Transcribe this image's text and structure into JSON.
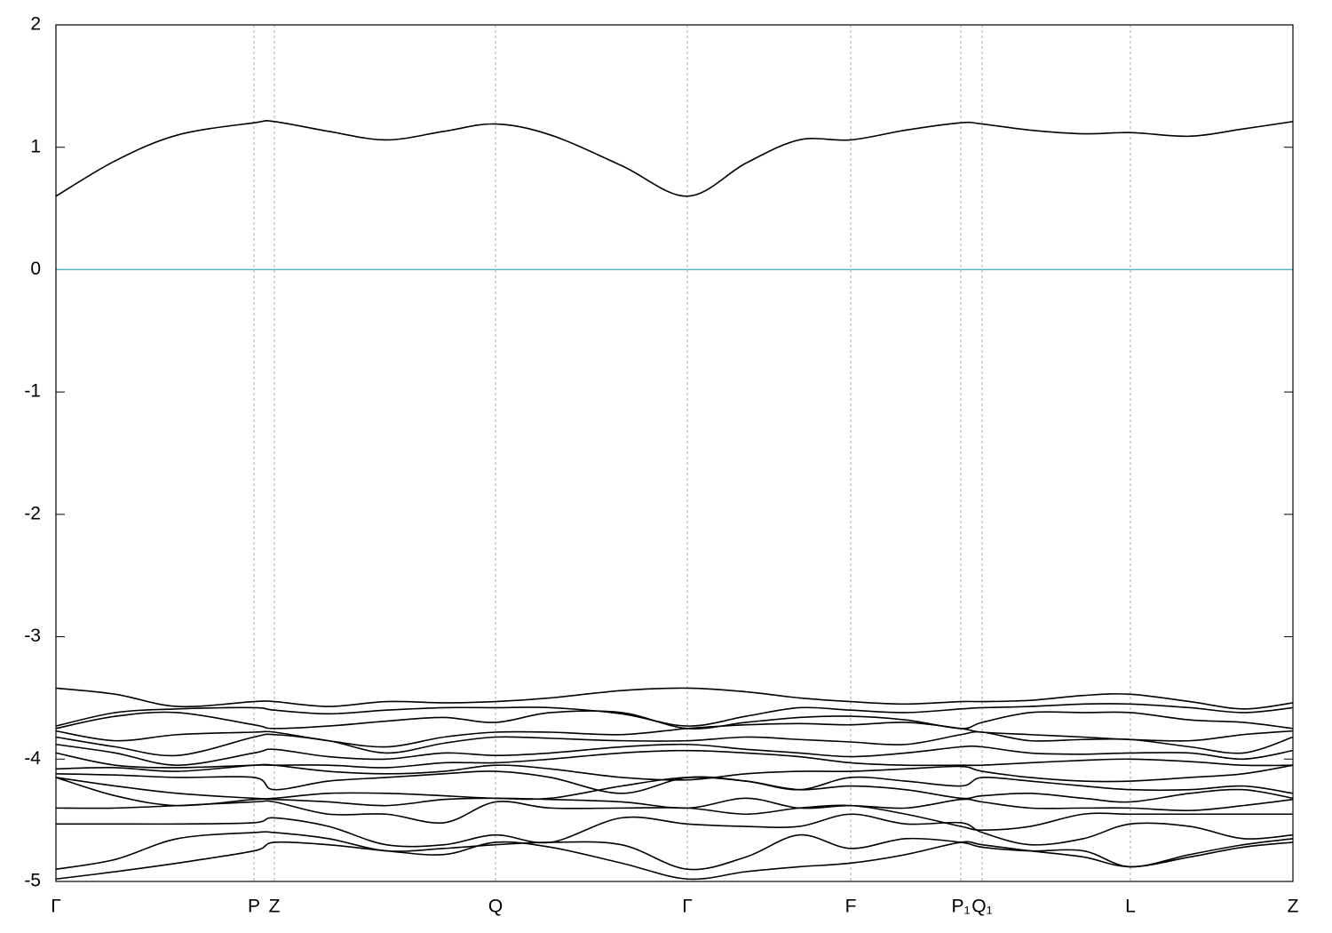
{
  "chart_data": {
    "type": "line",
    "x": [
      0,
      0.067,
      0.137,
      0.223,
      0.246,
      0.307,
      0.372,
      0.437,
      0.495,
      0.557,
      0.637,
      0.711,
      0.777,
      0.837,
      0.895,
      0.957,
      1.019,
      1.043,
      1.097,
      1.157,
      1.21,
      1.277,
      1.337,
      1.393
    ],
    "xlim": [
      0,
      1.393
    ],
    "xticks": [
      {
        "value": 0,
        "label": "Γ"
      },
      {
        "value": 0.223,
        "label": "P"
      },
      {
        "value": 0.246,
        "label": "Z"
      },
      {
        "value": 0.495,
        "label": "Q"
      },
      {
        "value": 0.711,
        "label": "Γ"
      },
      {
        "value": 0.895,
        "label": "F"
      },
      {
        "value": 1.019,
        "label": "P₁"
      },
      {
        "value": 1.043,
        "label": "Q₁"
      },
      {
        "value": 1.21,
        "label": "L"
      },
      {
        "value": 1.393,
        "label": "Z"
      }
    ],
    "ylim": [
      -5,
      2
    ],
    "yticks": [
      2,
      1,
      0,
      -1,
      -2,
      -3,
      -4,
      -5
    ],
    "grid": true,
    "hlines": [
      {
        "value": 0,
        "color": "#5ab4c8"
      }
    ],
    "series": [
      {
        "color": "#000000",
        "values": [
          0.6,
          0.89,
          1.1,
          1.2,
          1.21,
          1.13,
          1.06,
          1.13,
          1.19,
          1.1,
          0.85,
          0.6,
          0.87,
          1.06,
          1.06,
          1.14,
          1.2,
          1.19,
          1.14,
          1.11,
          1.12,
          1.09,
          1.15,
          1.21
        ]
      },
      {
        "color": "#000000",
        "values": [
          -3.42,
          -3.47,
          -3.57,
          -3.53,
          -3.53,
          -3.57,
          -3.53,
          -3.54,
          -3.53,
          -3.5,
          -3.44,
          -3.42,
          -3.45,
          -3.5,
          -3.53,
          -3.55,
          -3.53,
          -3.53,
          -3.52,
          -3.48,
          -3.47,
          -3.53,
          -3.59,
          -3.54
        ]
      },
      {
        "color": "#000000",
        "values": [
          -3.73,
          -3.62,
          -3.59,
          -3.58,
          -3.6,
          -3.63,
          -3.6,
          -3.58,
          -3.58,
          -3.58,
          -3.63,
          -3.73,
          -3.65,
          -3.58,
          -3.6,
          -3.62,
          -3.59,
          -3.58,
          -3.57,
          -3.55,
          -3.55,
          -3.58,
          -3.62,
          -3.58
        ]
      },
      {
        "color": "#000000",
        "values": [
          -3.75,
          -3.65,
          -3.62,
          -3.72,
          -3.75,
          -3.73,
          -3.69,
          -3.66,
          -3.7,
          -3.62,
          -3.62,
          -3.75,
          -3.7,
          -3.66,
          -3.65,
          -3.68,
          -3.75,
          -3.7,
          -3.62,
          -3.62,
          -3.62,
          -3.68,
          -3.7,
          -3.75
        ]
      },
      {
        "color": "#000000",
        "values": [
          -3.77,
          -3.85,
          -3.8,
          -3.78,
          -3.78,
          -3.85,
          -3.9,
          -3.82,
          -3.78,
          -3.78,
          -3.8,
          -3.75,
          -3.72,
          -3.71,
          -3.72,
          -3.7,
          -3.75,
          -3.78,
          -3.8,
          -3.82,
          -3.84,
          -3.85,
          -3.8,
          -3.77
        ]
      },
      {
        "color": "#000000",
        "values": [
          -3.82,
          -3.9,
          -3.97,
          -3.82,
          -3.8,
          -3.85,
          -3.95,
          -3.87,
          -3.82,
          -3.83,
          -3.85,
          -3.85,
          -3.82,
          -3.84,
          -3.86,
          -3.88,
          -3.8,
          -3.78,
          -3.85,
          -3.84,
          -3.84,
          -3.9,
          -3.95,
          -3.82
        ]
      },
      {
        "color": "#000000",
        "values": [
          -3.88,
          -3.95,
          -4.05,
          -3.95,
          -3.92,
          -3.98,
          -4.0,
          -3.95,
          -3.97,
          -3.95,
          -3.9,
          -3.88,
          -3.92,
          -3.95,
          -3.98,
          -3.95,
          -3.9,
          -3.9,
          -3.95,
          -3.96,
          -3.95,
          -3.95,
          -4.0,
          -3.93
        ]
      },
      {
        "color": "#000000",
        "values": [
          -3.95,
          -4.05,
          -4.07,
          -4.05,
          -4.05,
          -4.05,
          -4.07,
          -4.03,
          -4.03,
          -4.0,
          -3.95,
          -3.93,
          -3.95,
          -3.98,
          -4.03,
          -4.05,
          -4.05,
          -4.05,
          -4.03,
          -4.01,
          -4.0,
          -4.02,
          -4.05,
          -4.05
        ]
      },
      {
        "color": "#000000",
        "values": [
          -4.08,
          -4.07,
          -4.1,
          -4.05,
          -4.05,
          -4.1,
          -4.12,
          -4.1,
          -4.05,
          -4.08,
          -4.15,
          -4.17,
          -4.12,
          -4.1,
          -4.1,
          -4.08,
          -4.06,
          -4.1,
          -4.15,
          -4.18,
          -4.18,
          -4.15,
          -4.12,
          -4.05
        ]
      },
      {
        "color": "#000000",
        "values": [
          -4.12,
          -4.13,
          -4.15,
          -4.15,
          -4.25,
          -4.18,
          -4.15,
          -4.12,
          -4.1,
          -4.15,
          -4.28,
          -4.15,
          -4.18,
          -4.25,
          -4.15,
          -4.18,
          -4.22,
          -4.15,
          -4.18,
          -4.22,
          -4.25,
          -4.25,
          -4.22,
          -4.28
        ]
      },
      {
        "color": "#000000",
        "values": [
          -4.15,
          -4.22,
          -4.28,
          -4.32,
          -4.32,
          -4.28,
          -4.28,
          -4.3,
          -4.32,
          -4.32,
          -4.22,
          -4.15,
          -4.18,
          -4.25,
          -4.22,
          -4.25,
          -4.32,
          -4.3,
          -4.28,
          -4.32,
          -4.35,
          -4.28,
          -4.25,
          -4.32
        ]
      },
      {
        "color": "#000000",
        "values": [
          -4.15,
          -4.3,
          -4.38,
          -4.33,
          -4.33,
          -4.35,
          -4.38,
          -4.33,
          -4.32,
          -4.33,
          -4.35,
          -4.4,
          -4.32,
          -4.4,
          -4.38,
          -4.4,
          -4.33,
          -4.35,
          -4.4,
          -4.4,
          -4.4,
          -4.42,
          -4.38,
          -4.33
        ]
      },
      {
        "color": "#000000",
        "values": [
          -4.4,
          -4.4,
          -4.38,
          -4.35,
          -4.35,
          -4.45,
          -4.45,
          -4.52,
          -4.35,
          -4.4,
          -4.4,
          -4.4,
          -4.45,
          -4.4,
          -4.38,
          -4.45,
          -4.55,
          -4.58,
          -4.55,
          -4.45,
          -4.45,
          -4.45,
          -4.45,
          -4.45
        ]
      },
      {
        "color": "#000000",
        "values": [
          -4.53,
          -4.53,
          -4.53,
          -4.52,
          -4.48,
          -4.55,
          -4.7,
          -4.7,
          -4.62,
          -4.68,
          -4.48,
          -4.53,
          -4.55,
          -4.55,
          -4.45,
          -4.53,
          -4.52,
          -4.6,
          -4.7,
          -4.65,
          -4.53,
          -4.55,
          -4.65,
          -4.62
        ]
      },
      {
        "color": "#000000",
        "values": [
          -4.9,
          -4.82,
          -4.65,
          -4.6,
          -4.6,
          -4.65,
          -4.75,
          -4.73,
          -4.7,
          -4.68,
          -4.7,
          -4.9,
          -4.8,
          -4.62,
          -4.73,
          -4.65,
          -4.68,
          -4.72,
          -4.75,
          -4.75,
          -4.88,
          -4.78,
          -4.7,
          -4.65
        ]
      },
      {
        "color": "#000000",
        "values": [
          -4.98,
          -4.92,
          -4.85,
          -4.75,
          -4.68,
          -4.7,
          -4.75,
          -4.78,
          -4.68,
          -4.72,
          -4.85,
          -4.98,
          -4.92,
          -4.88,
          -4.85,
          -4.78,
          -4.68,
          -4.7,
          -4.75,
          -4.8,
          -4.88,
          -4.8,
          -4.72,
          -4.68
        ]
      }
    ]
  }
}
